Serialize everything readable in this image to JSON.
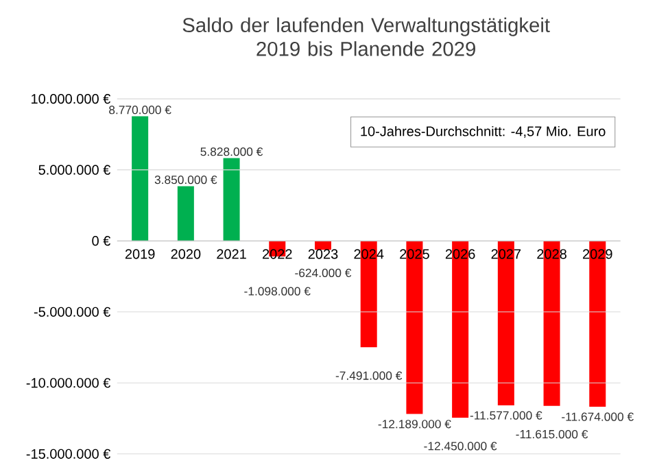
{
  "chart_data": {
    "type": "bar",
    "title": "Saldo der laufenden Verwaltungstätigkeit 2019 bis Planende 2029",
    "categories": [
      "2019",
      "2020",
      "2021",
      "2022",
      "2023",
      "2024",
      "2025",
      "2026",
      "2027",
      "2028",
      "2029"
    ],
    "values": [
      8770000,
      3850000,
      5828000,
      -1098000,
      -624000,
      -7491000,
      -12189000,
      -12450000,
      -11577000,
      -11615000,
      -11674000
    ],
    "colors": [
      "#00b050",
      "#00b050",
      "#00b050",
      "#ff0000",
      "#ff0000",
      "#ff0000",
      "#ff0000",
      "#ff0000",
      "#ff0000",
      "#ff0000",
      "#ff0000"
    ],
    "value_labels": [
      "8.770.000 €",
      "3.850.000 €",
      "5.828.000 €",
      "-1.098.000 €",
      "-624.000 €",
      "-7.491.000 €",
      "-12.189.000 €",
      "-12.450.000 €",
      "-11.577.000 €",
      "-11.615.000 €",
      "-11.674.000 €"
    ],
    "ylim": [
      -15000000,
      10000000
    ],
    "yticks": [
      {
        "value": -15000000,
        "label": "-15.000.000 €"
      },
      {
        "value": -10000000,
        "label": "-10.000.000 €"
      },
      {
        "value": -5000000,
        "label": "-5.000.000 €"
      },
      {
        "value": 0,
        "label": "0 €"
      },
      {
        "value": 5000000,
        "label": "5.000.000 €"
      },
      {
        "value": 10000000,
        "label": "10.000.000 €"
      }
    ],
    "grid": "y",
    "annotations": [
      "10-Jahres-Durchschnitt: -4,57 Mio. Euro"
    ]
  }
}
